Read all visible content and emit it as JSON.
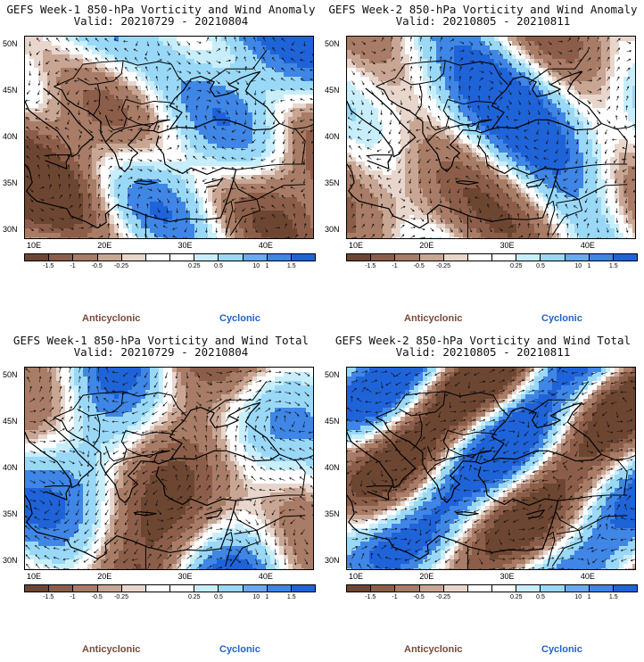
{
  "panels": [
    {
      "title": "GEFS Week-1 850-hPa Vorticity and Wind Anomaly",
      "valid": "Valid: 20210729 - 20210804",
      "field": "anomaly",
      "seed": 11
    },
    {
      "title": "GEFS Week-2 850-hPa Vorticity and Wind Anomaly",
      "valid": "Valid: 20210805 - 20210811",
      "field": "anomaly",
      "seed": 23
    },
    {
      "title": "GEFS Week-1 850-hPa Vorticity and Wind Total",
      "valid": "Valid: 20210729 - 20210804",
      "field": "total",
      "seed": 37
    },
    {
      "title": "GEFS Week-2 850-hPa Vorticity and Wind Total",
      "valid": "Valid: 20210805 - 20210811",
      "field": "total",
      "seed": 53
    }
  ],
  "map": {
    "lat_labels": [
      "50N",
      "45N",
      "40N",
      "35N",
      "30N"
    ],
    "lon_labels": [
      "10E",
      "20E",
      "30E",
      "40E"
    ],
    "lon_range": [
      10,
      46
    ],
    "lat_range": [
      29,
      51
    ]
  },
  "colorbar": {
    "labels": [
      "-1.5",
      "-1",
      "-0.5",
      "-0.25",
      "0.25",
      "0.5",
      "1",
      "1.5"
    ],
    "scale_note": "10",
    "colors": [
      "#6d4632",
      "#8c5e49",
      "#a87c66",
      "#c9a694",
      "#e8d6cc",
      "#ffffff",
      "#ffffff",
      "#c8eefc",
      "#9ad8f7",
      "#6aaaf0",
      "#3f86e6",
      "#1f63d9"
    ]
  },
  "legend": {
    "anticyclonic": "Anticyclonic",
    "cyclonic": "Cyclonic"
  }
}
